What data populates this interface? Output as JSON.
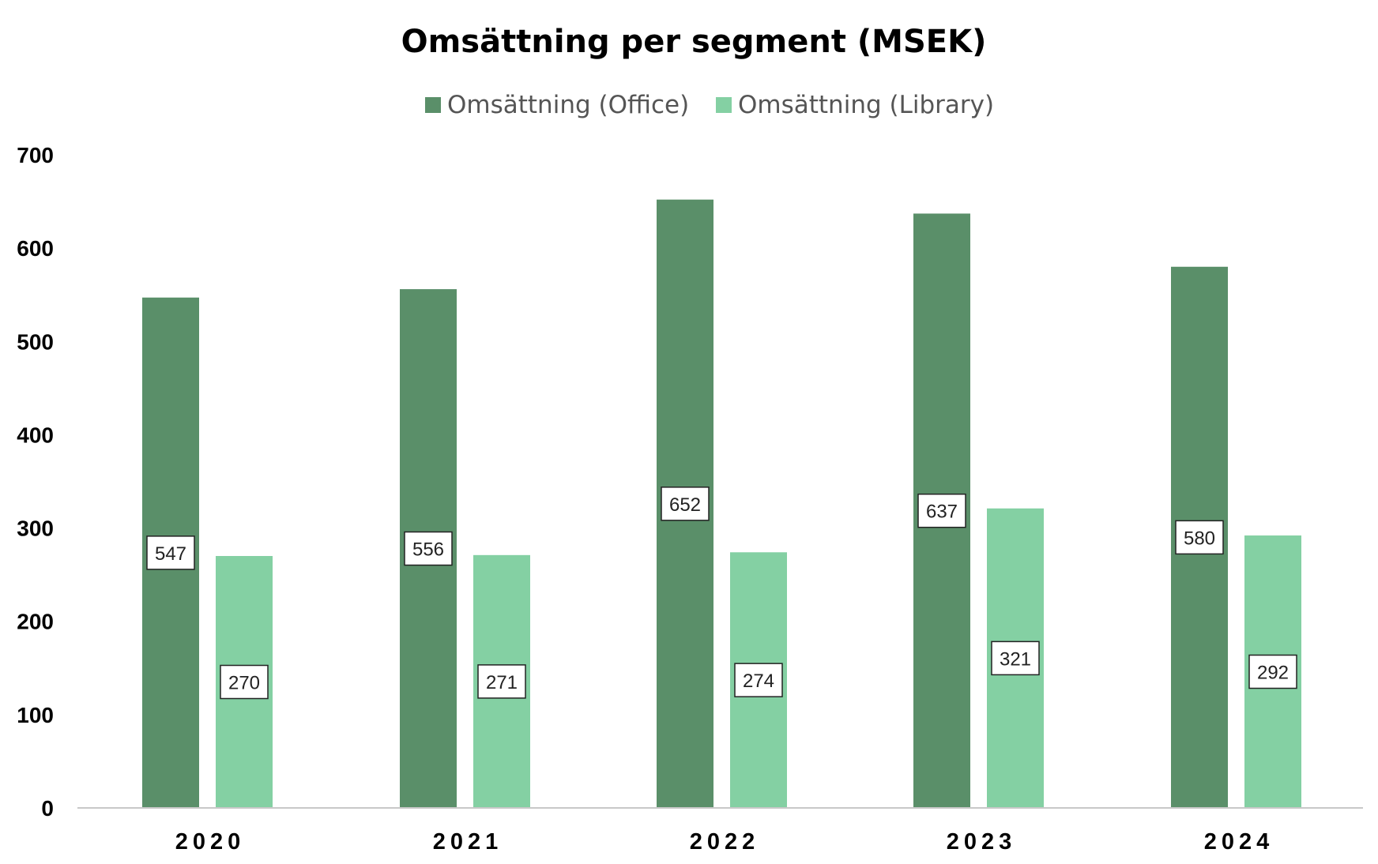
{
  "chart_data": {
    "type": "bar",
    "title": "Omsättning per segment  (MSEK)",
    "xlabel": "",
    "ylabel": "",
    "categories": [
      "2020",
      "2021",
      "2022",
      "2023",
      "2024"
    ],
    "series": [
      {
        "name": "Omsättning (Office)",
        "color": "#5a8f69",
        "values": [
          547,
          556,
          652,
          637,
          580
        ]
      },
      {
        "name": "Omsättning (Library)",
        "color": "#84d0a3",
        "values": [
          270,
          271,
          274,
          321,
          292
        ]
      }
    ],
    "ylim": [
      0,
      700
    ],
    "yticks": [
      0,
      100,
      200,
      300,
      400,
      500,
      600,
      700
    ],
    "grid": false,
    "legend_position": "top-center",
    "data_labels": true
  }
}
